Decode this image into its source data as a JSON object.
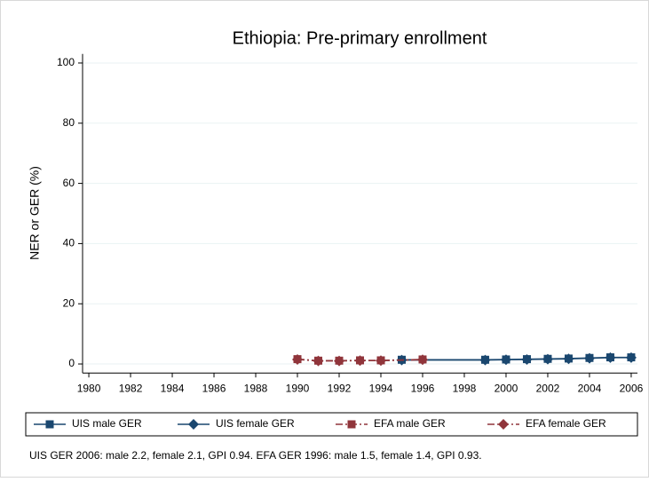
{
  "chart_data": {
    "type": "line",
    "title": "Ethiopia: Pre-primary enrollment",
    "y_label": "NER or GER (%)",
    "note": "UIS GER 2006: male 2.2, female 2.1, GPI 0.94. EFA GER 1996: male 1.5, female 1.4, GPI 0.93.",
    "xlim": [
      1979.7,
      2006.3
    ],
    "xticks": [
      1980,
      1982,
      1984,
      1986,
      1988,
      1990,
      1992,
      1994,
      1996,
      1998,
      2000,
      2002,
      2004,
      2006
    ],
    "ylim": [
      -3,
      103
    ],
    "yticks": [
      0,
      20,
      40,
      60,
      80,
      100
    ],
    "grid": true,
    "legend": "bottom",
    "series": [
      {
        "name": "UIS male GER",
        "color": "#1a476f",
        "marker": "square",
        "dash": "solid",
        "x": [
          1995,
          1999,
          2000,
          2001,
          2002,
          2003,
          2004,
          2005,
          2006
        ],
        "values": [
          1.4,
          1.4,
          1.5,
          1.6,
          1.7,
          1.8,
          2.0,
          2.2,
          2.2
        ]
      },
      {
        "name": "UIS female GER",
        "color": "#1a476f",
        "marker": "diamond",
        "dash": "solid",
        "x": [
          1995,
          1999,
          2000,
          2001,
          2002,
          2003,
          2004,
          2005,
          2006
        ],
        "values": [
          1.3,
          1.3,
          1.4,
          1.5,
          1.6,
          1.7,
          1.9,
          2.1,
          2.1
        ]
      },
      {
        "name": "EFA male GER",
        "color": "#90353b",
        "marker": "square",
        "dash": "dashdot",
        "x": [
          1990,
          1991,
          1992,
          1993,
          1994,
          1996
        ],
        "values": [
          1.6,
          1.1,
          1.1,
          1.2,
          1.2,
          1.5
        ]
      },
      {
        "name": "EFA female GER",
        "color": "#90353b",
        "marker": "diamond",
        "dash": "dashdot",
        "x": [
          1990,
          1991,
          1992,
          1993,
          1994,
          1996
        ],
        "values": [
          1.5,
          1.0,
          1.0,
          1.1,
          1.1,
          1.4
        ]
      }
    ]
  }
}
